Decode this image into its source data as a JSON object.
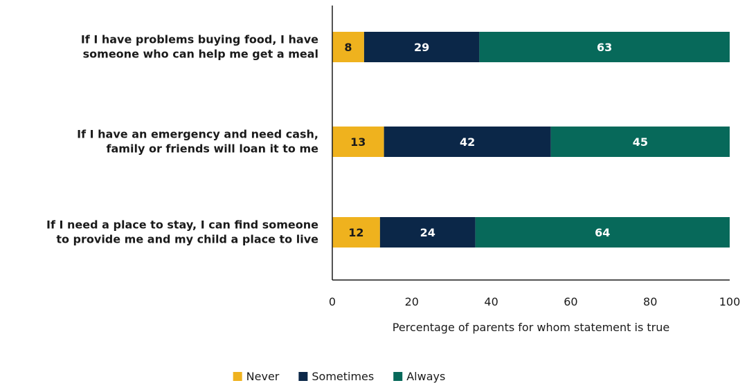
{
  "chart_data": {
    "type": "bar",
    "orientation": "horizontal",
    "stacked": true,
    "title": "",
    "categories": [
      [
        "If I have problems buying food, I have",
        "someone who can help me get a meal"
      ],
      [
        "If I have an emergency and need cash,",
        "family or friends will loan it to me"
      ],
      [
        "If I need a place to stay, I can find someone",
        "to provide me and my child a place to live"
      ]
    ],
    "series": [
      {
        "name": "Never",
        "color": "#EFB21E",
        "label_color": "#1a1a1a",
        "values": [
          8,
          13,
          12
        ]
      },
      {
        "name": "Sometimes",
        "color": "#0B2748",
        "label_color": "#ffffff",
        "values": [
          29,
          42,
          24
        ]
      },
      {
        "name": "Always",
        "color": "#07695A",
        "label_color": "#ffffff",
        "values": [
          63,
          45,
          64
        ]
      }
    ],
    "xlabel": "Percentage of parents for whom statement is true",
    "ylabel": "",
    "xlim": [
      0,
      100
    ],
    "xticks": [
      "0",
      "20",
      "40",
      "60",
      "80",
      "100"
    ],
    "grid": false,
    "legend_position": "bottom"
  }
}
